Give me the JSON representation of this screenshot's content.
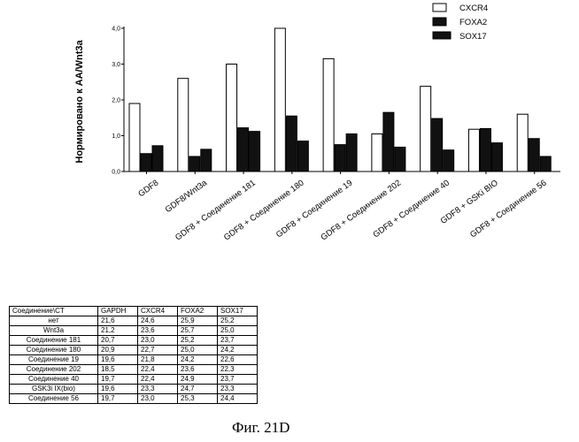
{
  "chart_data": {
    "type": "bar",
    "ylabel": "Нормировано к AA/Wnt3a",
    "ylim": [
      0,
      4.0
    ],
    "yticks": [
      "0,0",
      "1,0",
      "2,0",
      "3,0",
      "4,0"
    ],
    "categories": [
      "GDF8",
      "GDF8/Wnt3a",
      "GDF8 + Соединение 181",
      "GDF8 + Соединение 180",
      "GDF8 + Соединение 19",
      "GDF8 + Соединение 202",
      "GDF8 + Соединение 40",
      "GDF8 + GSKi BIO",
      "GDF8 + Соединение 56"
    ],
    "series": [
      {
        "name": "CXCR4",
        "color": "#ffffff",
        "values": [
          1.9,
          2.6,
          3.0,
          4.0,
          3.15,
          1.05,
          2.38,
          1.18,
          1.6
        ]
      },
      {
        "name": "FOXA2",
        "color": "#111111",
        "values": [
          0.5,
          0.42,
          1.22,
          1.55,
          0.75,
          1.65,
          1.48,
          1.2,
          0.92
        ]
      },
      {
        "name": "SOX17",
        "color": "#111111",
        "values": [
          0.72,
          0.62,
          1.12,
          0.85,
          1.05,
          0.68,
          0.6,
          0.8,
          0.42
        ]
      }
    ],
    "legend": "top-right"
  },
  "table": {
    "headers": [
      "Соединение\\CT",
      "GAPDH",
      "CXCR4",
      "FOXA2",
      "SOX17"
    ],
    "rows": [
      [
        "нет",
        "21,6",
        "24,6",
        "25,9",
        "25,2"
      ],
      [
        "Wnt3a",
        "21,2",
        "23,6",
        "25,7",
        "25,0"
      ],
      [
        "Соединение 181",
        "20,7",
        "23,0",
        "25,2",
        "23,7"
      ],
      [
        "Соединение 180",
        "20,9",
        "22,7",
        "25,0",
        "24,2"
      ],
      [
        "Соединение 19",
        "19,6",
        "21,8",
        "24,2",
        "22,6"
      ],
      [
        "Соединение 202",
        "18,5",
        "22,4",
        "23,6",
        "22,3"
      ],
      [
        "Соединение 40",
        "19,7",
        "22,4",
        "24,9",
        "23,7"
      ],
      [
        "GSK3i IX(bio)",
        "19,6",
        "23,3",
        "24,7",
        "23,3"
      ],
      [
        "Соединение 56",
        "19,7",
        "23,0",
        "25,3",
        "24,4"
      ]
    ]
  },
  "caption": "Фиг. 21D"
}
